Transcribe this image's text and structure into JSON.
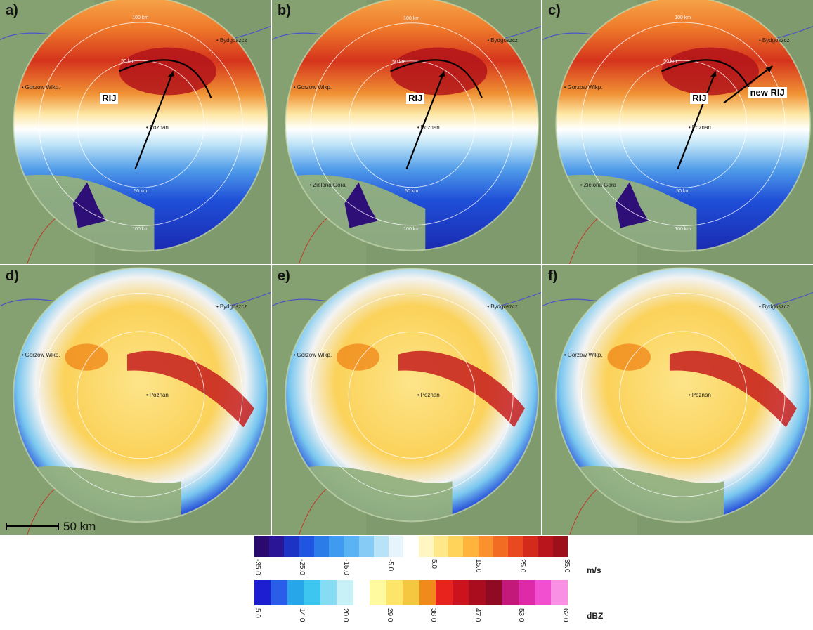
{
  "panels": [
    {
      "label": "a)",
      "type": "velocity"
    },
    {
      "label": "b)",
      "type": "velocity"
    },
    {
      "label": "c)",
      "type": "velocity"
    },
    {
      "label": "d)",
      "type": "reflectivity"
    },
    {
      "label": "e)",
      "type": "reflectivity"
    },
    {
      "label": "f)",
      "type": "reflectivity"
    }
  ],
  "cities": {
    "bydgoszcz": "Bydgoszcz",
    "gorzow": "Gorzow Wlkp.",
    "poznan": "Poznan",
    "zielona_gora": "Zielona Gora"
  },
  "range_rings": {
    "inner": "50 km",
    "outer": "100 km"
  },
  "annotations": {
    "rij": "RIJ",
    "new_rij": "new RIJ"
  },
  "scale_bar": {
    "label": "50 km"
  },
  "velocity_scale": {
    "unit": "m/s",
    "ticks": [
      "-35.0",
      "-25.0",
      "-15.0",
      "-5.0",
      "5.0",
      "15.0",
      "25.0",
      "35.0"
    ],
    "colors": [
      "#2b0a6e",
      "#2a1596",
      "#1d33c4",
      "#1f55e0",
      "#2b7be8",
      "#3f9bef",
      "#5ab3f2",
      "#86cbf5",
      "#b7e2f8",
      "#e6f4fb",
      "#ffffff",
      "#fff6c4",
      "#ffe88a",
      "#ffd35a",
      "#ffb43c",
      "#fb912c",
      "#f36c24",
      "#e8491f",
      "#d32a1c",
      "#b8161c",
      "#9e0f1c"
    ]
  },
  "reflectivity_scale": {
    "unit": "dBZ",
    "ticks": [
      "5.0",
      "14.0",
      "20.0",
      "29.0",
      "38.0",
      "47.0",
      "53.0",
      "62.0"
    ],
    "colors": [
      "#1d1ed1",
      "#2a5ee8",
      "#27a6ea",
      "#3cc6f0",
      "#86dcf3",
      "#c8f0f7",
      "#ffffff",
      "#fff9a0",
      "#fde56a",
      "#f5c63f",
      "#f08a1b",
      "#e8231d",
      "#cc121c",
      "#a90d1e",
      "#8f0a23",
      "#c2197a",
      "#de29a8",
      "#f24fd0",
      "#f990e4"
    ]
  }
}
